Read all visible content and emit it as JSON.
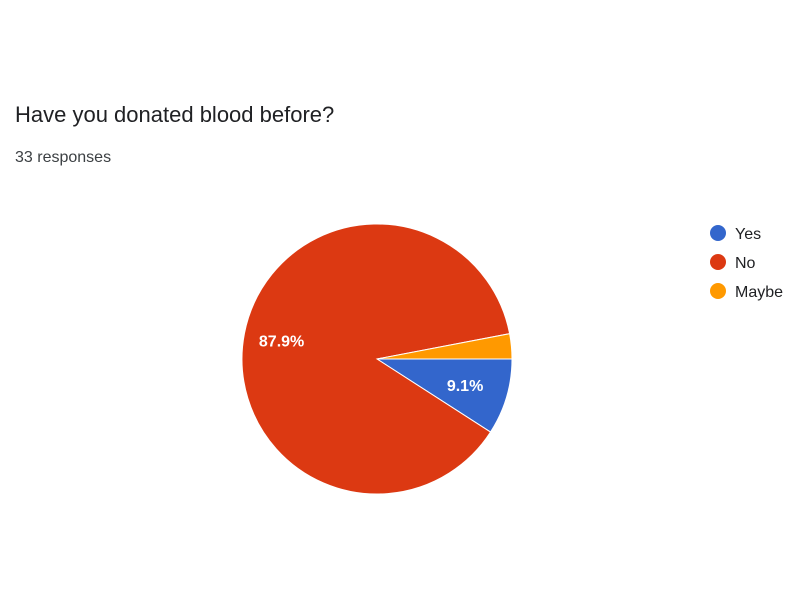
{
  "question": {
    "title": "Have you donated blood before?",
    "responses": "33 responses"
  },
  "chart_data": {
    "type": "pie",
    "title": "Have you donated blood before?",
    "total_responses": 33,
    "slices": [
      {
        "label": "Yes",
        "value": 9.1,
        "display": "9.1%",
        "color": "#3366cc"
      },
      {
        "label": "No",
        "value": 87.9,
        "display": "87.9%",
        "color": "#dc3912"
      },
      {
        "label": "Maybe",
        "value": 3.0,
        "display": "",
        "color": "#ff9900"
      }
    ],
    "legend": [
      "Yes",
      "No",
      "Maybe"
    ],
    "legend_position": "right"
  }
}
